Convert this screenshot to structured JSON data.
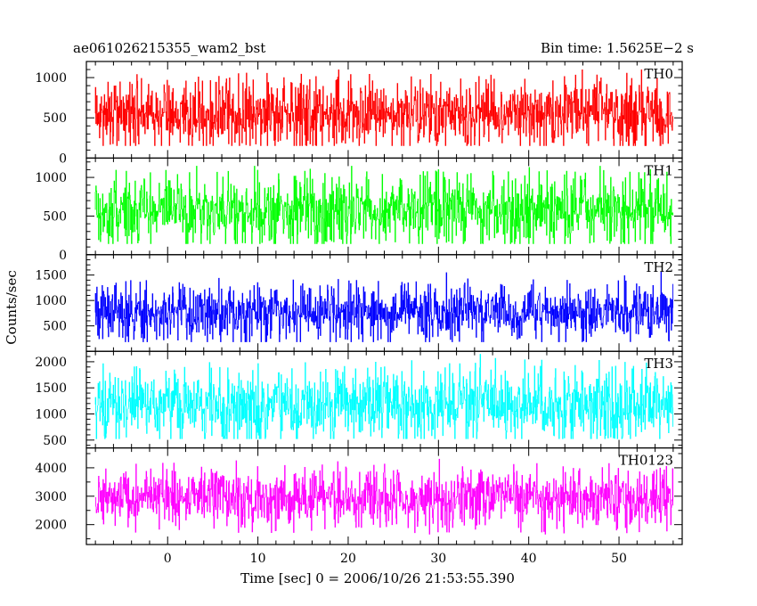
{
  "header": {
    "title": "ae061026215355_wam2_bst",
    "bin_time": "Bin time: 1.5625E−2 s"
  },
  "chart_data": {
    "type": "line",
    "render": "step-light-curve",
    "xlabel": "Time [sec] 0 = 2006/10/26 21:53:55.390",
    "ylabel": "Counts/sec",
    "xlim": [
      -9,
      57
    ],
    "x_ticks": [
      0,
      10,
      20,
      30,
      40,
      50
    ],
    "x_tick_labels": [
      "0",
      "10",
      "20",
      "30",
      "40",
      "50"
    ],
    "x_minor_step": 2,
    "data_range": [
      -8,
      56
    ],
    "bin_time": 0.015625,
    "panels": [
      {
        "name": "TH0",
        "color": "#ff0000",
        "ylim": [
          0,
          1200
        ],
        "y_ticks": [
          0,
          500,
          1000
        ],
        "y_tick_labels": [
          "0",
          "500",
          "1000"
        ],
        "y_minor_step": 100,
        "mean": 555,
        "spread": 200,
        "min": 150,
        "max": 1100
      },
      {
        "name": "TH1",
        "color": "#00ff00",
        "ylim": [
          0,
          1250
        ],
        "y_ticks": [
          0,
          500,
          1000
        ],
        "y_tick_labels": [
          "0",
          "500",
          "1000"
        ],
        "y_minor_step": 100,
        "mean": 580,
        "spread": 210,
        "min": 140,
        "max": 1150
      },
      {
        "name": "TH2",
        "color": "#0000ff",
        "ylim": [
          0,
          1900
        ],
        "y_ticks": [
          500,
          1000,
          1500
        ],
        "y_tick_labels": [
          "500",
          "1000",
          "1500"
        ],
        "y_minor_step": 100,
        "mean": 760,
        "spread": 260,
        "min": 180,
        "max": 1750
      },
      {
        "name": "TH3",
        "color": "#00ffff",
        "ylim": [
          350,
          2200
        ],
        "y_ticks": [
          500,
          1000,
          1500,
          2000
        ],
        "y_tick_labels": [
          "500",
          "1000",
          "1500",
          "2000"
        ],
        "y_minor_step": 100,
        "mean": 1180,
        "spread": 330,
        "min": 520,
        "max": 2150
      },
      {
        "name": "TH0123",
        "color": "#ff00ff",
        "ylim": [
          1300,
          4700
        ],
        "y_ticks": [
          2000,
          3000,
          4000
        ],
        "y_tick_labels": [
          "2000",
          "3000",
          "4000"
        ],
        "y_minor_step": 500,
        "mean": 2950,
        "spread": 480,
        "min": 1650,
        "max": 4550
      }
    ]
  }
}
